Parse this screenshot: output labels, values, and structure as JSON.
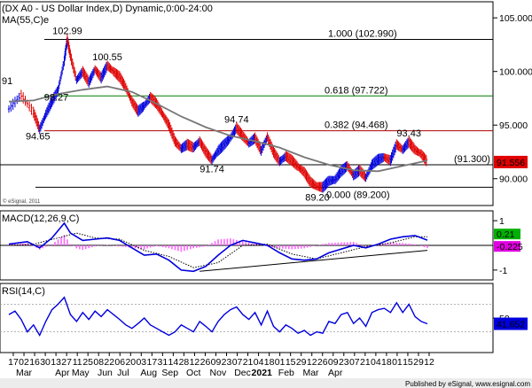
{
  "chart_data": [
    {
      "type": "candlestick",
      "title": "(DX A0 - US Dollar Index,D) Dynamic,0:00-24:00",
      "indicator_label": "MA(55,C)e",
      "ylim": [
        87.5,
        106.5
      ],
      "y_ticks": [
        "105.000",
        "100.000",
        "95.000",
        "90.000"
      ],
      "price_points": [
        [
          0,
          96.5
        ],
        [
          2,
          97.8
        ],
        [
          4,
          96.2
        ],
        [
          5,
          94.6
        ],
        [
          6,
          96.0
        ],
        [
          7,
          97.2
        ],
        [
          8,
          98.27
        ],
        [
          9,
          101.0
        ],
        [
          9.5,
          102.99
        ],
        [
          10,
          101.5
        ],
        [
          11,
          99.2
        ],
        [
          12,
          100.0
        ],
        [
          13,
          99.0
        ],
        [
          14,
          100.2
        ],
        [
          15,
          99.4
        ],
        [
          16,
          100.55
        ],
        [
          17,
          100.0
        ],
        [
          18,
          99.5
        ],
        [
          19,
          98.5
        ],
        [
          20,
          97.2
        ],
        [
          21,
          96.3
        ],
        [
          22,
          96.8
        ],
        [
          23,
          97.6
        ],
        [
          24,
          97.0
        ],
        [
          25,
          96.0
        ],
        [
          26,
          95.0
        ],
        [
          27,
          93.5
        ],
        [
          28,
          92.8
        ],
        [
          29,
          93.2
        ],
        [
          30,
          92.9
        ],
        [
          31,
          93.5
        ],
        [
          32,
          92.5
        ],
        [
          33,
          91.74
        ],
        [
          34,
          92.6
        ],
        [
          35,
          93.2
        ],
        [
          36,
          93.8
        ],
        [
          37,
          94.74
        ],
        [
          38,
          94.0
        ],
        [
          39,
          93.3
        ],
        [
          40,
          93.8
        ],
        [
          41,
          92.6
        ],
        [
          42,
          93.9
        ],
        [
          43,
          92.5
        ],
        [
          44,
          91.6
        ],
        [
          45,
          92.1
        ],
        [
          46,
          91.7
        ],
        [
          47,
          91.1
        ],
        [
          48,
          90.6
        ],
        [
          49,
          89.7
        ],
        [
          50,
          89.3
        ],
        [
          51,
          89.2
        ],
        [
          52,
          89.8
        ],
        [
          53,
          89.9
        ],
        [
          54,
          90.7
        ],
        [
          55,
          91.2
        ],
        [
          56,
          90.3
        ],
        [
          57,
          90.8
        ],
        [
          58,
          90.1
        ],
        [
          59,
          91.3
        ],
        [
          60,
          91.8
        ],
        [
          61,
          92.0
        ],
        [
          62,
          91.7
        ],
        [
          63,
          93.2
        ],
        [
          64,
          92.7
        ],
        [
          65,
          93.43
        ],
        [
          66,
          92.7
        ],
        [
          67,
          92.3
        ],
        [
          68,
          91.556
        ]
      ],
      "ma_points": [
        [
          0,
          97.2
        ],
        [
          4,
          97.3
        ],
        [
          8,
          97.9
        ],
        [
          12,
          98.3
        ],
        [
          16,
          98.6
        ],
        [
          20,
          98.1
        ],
        [
          24,
          97.0
        ],
        [
          28,
          95.8
        ],
        [
          32,
          94.8
        ],
        [
          36,
          94.0
        ],
        [
          40,
          93.5
        ],
        [
          44,
          92.9
        ],
        [
          48,
          92.0
        ],
        [
          52,
          91.3
        ],
        [
          56,
          90.8
        ],
        [
          60,
          90.7
        ],
        [
          64,
          91.2
        ],
        [
          68,
          91.7
        ]
      ],
      "levels": [
        {
          "value": 102.99,
          "label": "1.000 (102.990)",
          "color": "#000000"
        },
        {
          "value": 97.722,
          "label": "0.618 (97.722)",
          "color": "#007a00"
        },
        {
          "value": 94.468,
          "label": "0.382 (94.468)",
          "color": "#b00000"
        },
        {
          "value": 89.2,
          "label": "0.000 (89.200)",
          "color": "#000000"
        },
        {
          "value": 91.3,
          "label": "(91.300)",
          "color": "#000000"
        }
      ],
      "annotations": [
        "102.99",
        "100.55",
        "98.27",
        "94.65",
        "94.74",
        "91.74",
        "89.20",
        "93.43"
      ],
      "last_price": "91.556",
      "last_price_color": "#e00000",
      "watermark": "© eSignal, 2011"
    },
    {
      "type": "line",
      "title": "MACD(12,26,9,C)",
      "ylim": [
        -1.4,
        1.4
      ],
      "y_ticks": [
        "1",
        "-1"
      ],
      "macd_points": [
        [
          0,
          0.05
        ],
        [
          3,
          0.15
        ],
        [
          5,
          -0.1
        ],
        [
          7,
          0.3
        ],
        [
          9,
          0.9
        ],
        [
          10,
          0.5
        ],
        [
          12,
          0.2
        ],
        [
          14,
          0.25
        ],
        [
          16,
          0.3
        ],
        [
          18,
          0.2
        ],
        [
          20,
          -0.1
        ],
        [
          22,
          -0.4
        ],
        [
          24,
          -0.35
        ],
        [
          26,
          -0.6
        ],
        [
          28,
          -1.0
        ],
        [
          30,
          -1.05
        ],
        [
          32,
          -0.85
        ],
        [
          34,
          -0.4
        ],
        [
          36,
          0.0
        ],
        [
          38,
          0.2
        ],
        [
          40,
          0.1
        ],
        [
          42,
          0.0
        ],
        [
          44,
          -0.3
        ],
        [
          46,
          -0.55
        ],
        [
          48,
          -0.6
        ],
        [
          50,
          -0.55
        ],
        [
          52,
          -0.3
        ],
        [
          54,
          -0.15
        ],
        [
          56,
          0.0
        ],
        [
          58,
          -0.1
        ],
        [
          60,
          0.05
        ],
        [
          62,
          0.25
        ],
        [
          64,
          0.35
        ],
        [
          66,
          0.4
        ],
        [
          68,
          0.21
        ]
      ],
      "signal_points": [
        [
          0,
          0.0
        ],
        [
          4,
          0.05
        ],
        [
          8,
          0.3
        ],
        [
          11,
          0.5
        ],
        [
          14,
          0.3
        ],
        [
          18,
          0.25
        ],
        [
          22,
          -0.2
        ],
        [
          26,
          -0.45
        ],
        [
          30,
          -0.9
        ],
        [
          34,
          -0.7
        ],
        [
          38,
          0.0
        ],
        [
          42,
          0.05
        ],
        [
          46,
          -0.35
        ],
        [
          50,
          -0.55
        ],
        [
          54,
          -0.3
        ],
        [
          58,
          -0.05
        ],
        [
          62,
          0.1
        ],
        [
          66,
          0.35
        ],
        [
          68,
          0.35
        ]
      ],
      "trendline": [
        [
          31,
          -1.05
        ],
        [
          68,
          -0.2
        ]
      ],
      "last_values": [
        "0.21",
        "-0.225"
      ],
      "last_colors": [
        "#00b000",
        "#e000e0"
      ]
    },
    {
      "type": "line",
      "title": "RSI(14,C)",
      "ylim": [
        0,
        100
      ],
      "y_ticks": [
        "50"
      ],
      "rsi_points": [
        [
          0,
          55
        ],
        [
          1,
          60
        ],
        [
          2,
          48
        ],
        [
          3,
          30
        ],
        [
          4,
          40
        ],
        [
          5,
          25
        ],
        [
          6,
          45
        ],
        [
          7,
          62
        ],
        [
          8,
          70
        ],
        [
          9,
          80
        ],
        [
          10,
          55
        ],
        [
          11,
          45
        ],
        [
          12,
          58
        ],
        [
          13,
          48
        ],
        [
          14,
          60
        ],
        [
          15,
          52
        ],
        [
          16,
          62
        ],
        [
          17,
          55
        ],
        [
          18,
          48
        ],
        [
          19,
          40
        ],
        [
          20,
          35
        ],
        [
          21,
          42
        ],
        [
          22,
          50
        ],
        [
          23,
          40
        ],
        [
          24,
          35
        ],
        [
          25,
          30
        ],
        [
          26,
          25
        ],
        [
          27,
          30
        ],
        [
          28,
          40
        ],
        [
          29,
          35
        ],
        [
          30,
          30
        ],
        [
          31,
          45
        ],
        [
          32,
          38
        ],
        [
          33,
          30
        ],
        [
          34,
          45
        ],
        [
          35,
          55
        ],
        [
          36,
          62
        ],
        [
          37,
          66
        ],
        [
          38,
          55
        ],
        [
          39,
          48
        ],
        [
          40,
          58
        ],
        [
          41,
          40
        ],
        [
          42,
          60
        ],
        [
          43,
          38
        ],
        [
          44,
          30
        ],
        [
          45,
          40
        ],
        [
          46,
          35
        ],
        [
          47,
          28
        ],
        [
          48,
          32
        ],
        [
          49,
          25
        ],
        [
          50,
          30
        ],
        [
          51,
          28
        ],
        [
          52,
          45
        ],
        [
          53,
          42
        ],
        [
          54,
          55
        ],
        [
          55,
          58
        ],
        [
          56,
          42
        ],
        [
          57,
          50
        ],
        [
          58,
          38
        ],
        [
          59,
          58
        ],
        [
          60,
          62
        ],
        [
          61,
          64
        ],
        [
          62,
          58
        ],
        [
          63,
          72
        ],
        [
          64,
          58
        ],
        [
          65,
          70
        ],
        [
          66,
          52
        ],
        [
          67,
          45
        ],
        [
          68,
          41.652
        ]
      ],
      "last_value": "41.652",
      "last_color": "#0000dd"
    }
  ],
  "x_axis": {
    "day_labels": [
      "17",
      "02",
      "16",
      "30",
      "13",
      "27",
      "11",
      "25",
      "08",
      "22",
      "06",
      "20",
      "03",
      "17",
      "31",
      "14",
      "28",
      "12",
      "26",
      "09",
      "23",
      "07",
      "21",
      "04",
      "18",
      "01",
      "15",
      "29",
      "12",
      "26",
      "09",
      "23",
      "07",
      "21",
      "04",
      "18",
      "01",
      "15",
      "29",
      "12"
    ],
    "months": [
      {
        "label": "Mar",
        "bold": false
      },
      {
        "label": "Apr",
        "bold": false
      },
      {
        "label": "May",
        "bold": false
      },
      {
        "label": "Jun",
        "bold": false
      },
      {
        "label": "Jul",
        "bold": false
      },
      {
        "label": "Aug",
        "bold": false
      },
      {
        "label": "Sep",
        "bold": false
      },
      {
        "label": "Oct",
        "bold": false
      },
      {
        "label": "Nov",
        "bold": false
      },
      {
        "label": "Dec",
        "bold": false
      },
      {
        "label": "2021",
        "bold": true
      },
      {
        "label": "Feb",
        "bold": false
      },
      {
        "label": "Mar",
        "bold": false
      },
      {
        "label": "Apr",
        "bold": false
      }
    ]
  },
  "footer": "Published by eSignal, www.esignal.com"
}
